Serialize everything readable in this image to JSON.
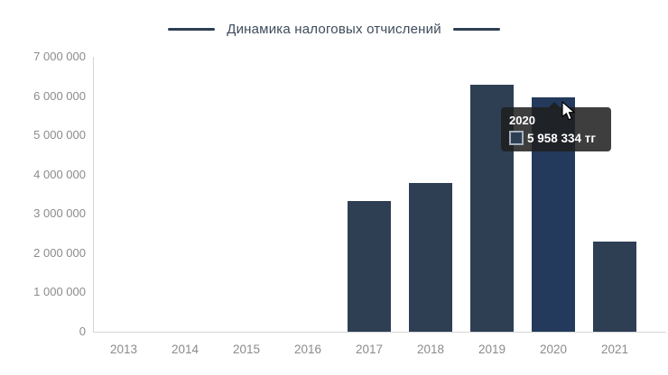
{
  "legend": {
    "title": "Динамика налоговых отчислений"
  },
  "chart_data": {
    "type": "bar",
    "title": "Динамика налоговых отчислений",
    "categories": [
      "2013",
      "2014",
      "2015",
      "2016",
      "2017",
      "2018",
      "2019",
      "2020",
      "2021"
    ],
    "values": [
      0,
      0,
      0,
      0,
      3330000,
      3790000,
      6280000,
      5958334,
      2290000
    ],
    "xlabel": "",
    "ylabel": "",
    "ylim": [
      0,
      7000000
    ],
    "ytick_step": 1000000,
    "ytick_labels": [
      "0",
      "1 000 000",
      "2 000 000",
      "3 000 000",
      "4 000 000",
      "5 000 000",
      "6 000 000",
      "7 000 000"
    ],
    "grid": false,
    "legend_position": "top",
    "bar_color": "#2e3f54",
    "hover_bar_color": "#243a5c",
    "hovered_category": "2020",
    "axis_color": "#d6d6d6",
    "tick_label_color": "#8b8b8b"
  },
  "tooltip": {
    "title": "2020",
    "value": "5 958 334 тг",
    "swatch_color": "#2d3e52"
  }
}
